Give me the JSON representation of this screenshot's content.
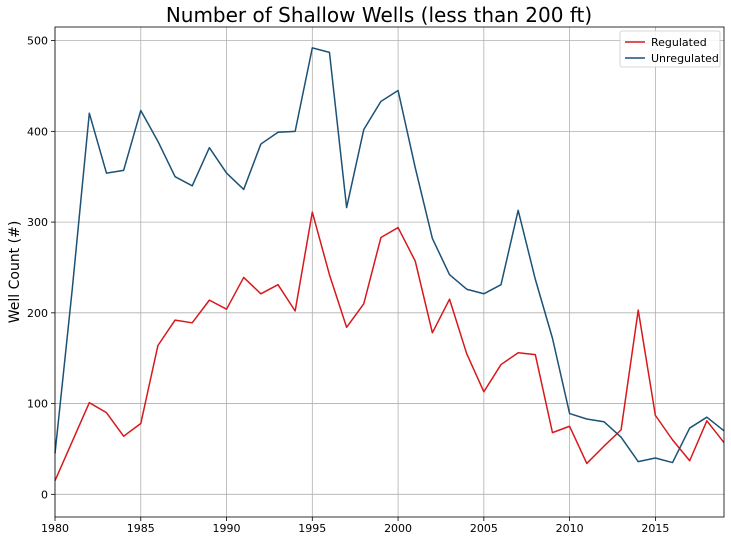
{
  "chart_data": {
    "type": "line",
    "title": "Number of Shallow Wells (less than 200 ft)",
    "xlabel": "",
    "ylabel": "Well Count (#)",
    "xlim": [
      1980,
      2019
    ],
    "ylim": [
      -25,
      515
    ],
    "xticks": [
      1980,
      1985,
      1990,
      1995,
      2000,
      2005,
      2010,
      2015
    ],
    "yticks": [
      0,
      100,
      200,
      300,
      400,
      500
    ],
    "grid": true,
    "legend_position": "top-right",
    "x": [
      1980,
      1981,
      1982,
      1983,
      1984,
      1985,
      1986,
      1987,
      1988,
      1989,
      1990,
      1991,
      1992,
      1993,
      1994,
      1995,
      1996,
      1997,
      1998,
      1999,
      2000,
      2001,
      2002,
      2003,
      2004,
      2005,
      2006,
      2007,
      2008,
      2009,
      2010,
      2011,
      2012,
      2013,
      2014,
      2015,
      2016,
      2017,
      2018,
      2019
    ],
    "series": [
      {
        "name": "Regulated",
        "color": "#d7191c",
        "values": [
          15,
          58,
          101,
          90,
          64,
          78,
          164,
          192,
          189,
          214,
          204,
          239,
          221,
          231,
          202,
          311,
          242,
          184,
          210,
          283,
          294,
          257,
          178,
          215,
          155,
          113,
          143,
          156,
          154,
          68,
          75,
          34,
          53,
          71,
          203,
          87,
          60,
          37,
          81,
          57
        ]
      },
      {
        "name": "Unregulated",
        "color": "#1b5276",
        "values": [
          45,
          225,
          420,
          354,
          357,
          423,
          389,
          350,
          340,
          382,
          354,
          336,
          386,
          399,
          400,
          492,
          487,
          316,
          402,
          433,
          445,
          360,
          282,
          242,
          226,
          221,
          231,
          313,
          237,
          172,
          89,
          83,
          80,
          63,
          36,
          40,
          35,
          73,
          85,
          70
        ]
      }
    ]
  }
}
